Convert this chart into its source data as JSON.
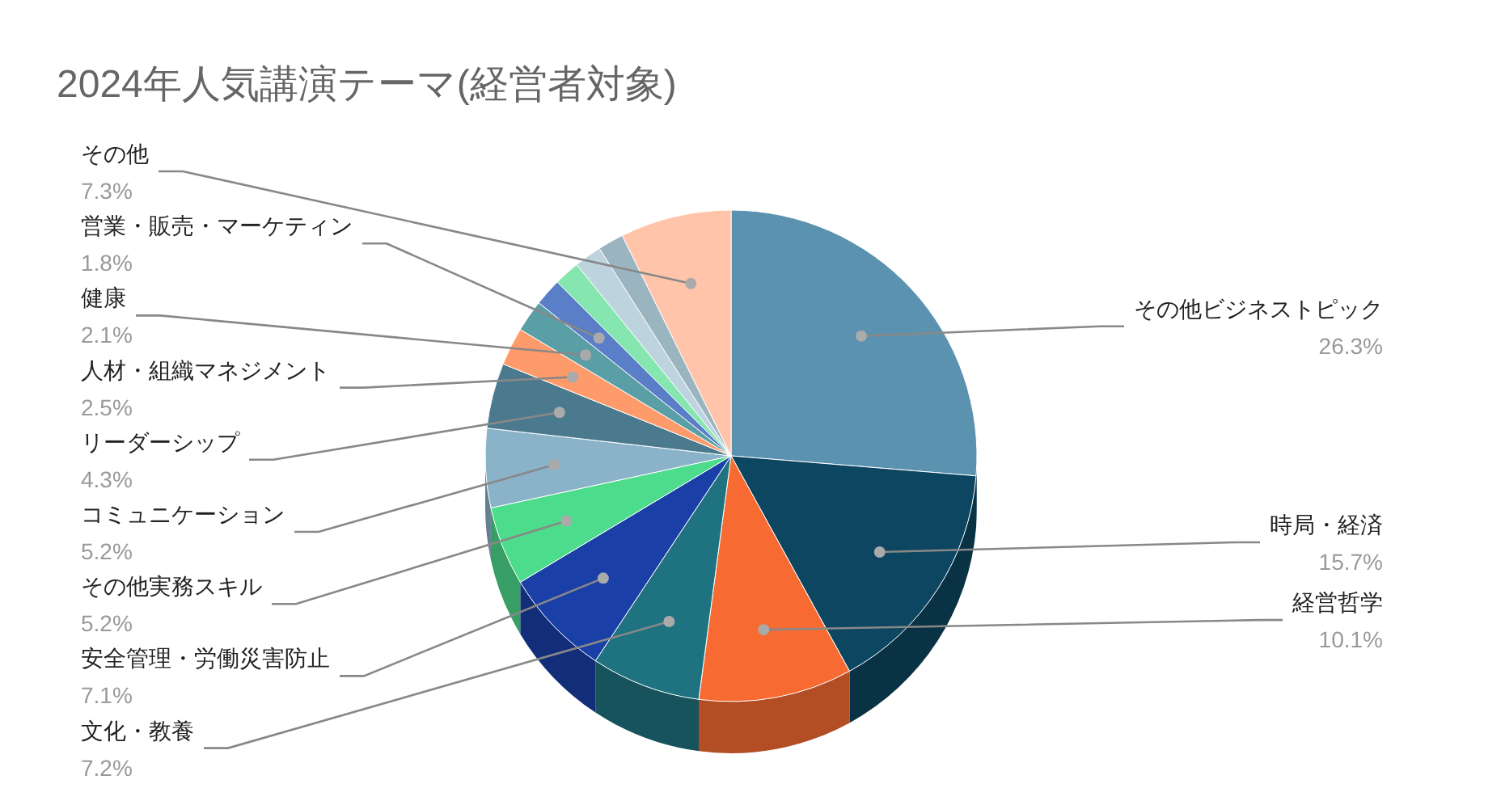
{
  "chart_data": {
    "type": "pie",
    "title": "2024年人気講演テーマ(経営者対象)",
    "categories": [
      "その他ビジネストピック",
      "時局・経済",
      "経営哲学",
      "文化・教養",
      "安全管理・労働災害防止",
      "その他実務スキル",
      "コミュニケーション",
      "リーダーシップ",
      "人材・組織マネジメント",
      "健康",
      "営業・販売・マーケティン",
      null,
      null,
      null,
      "その他"
    ],
    "values": [
      26.3,
      15.7,
      10.1,
      7.2,
      7.1,
      5.2,
      5.2,
      4.3,
      2.5,
      2.1,
      1.8,
      1.7,
      1.8,
      1.7,
      7.3
    ],
    "value_labels": [
      "26.3%",
      "15.7%",
      "10.1%",
      "7.2%",
      "7.1%",
      "5.2%",
      "5.2%",
      "4.3%",
      "2.5%",
      "2.1%",
      "1.8%",
      null,
      null,
      null,
      "7.3%"
    ],
    "colors": [
      "#5b92b0",
      "#0d4660",
      "#f76b32",
      "#1f7380",
      "#1a40a8",
      "#4ddc8c",
      "#8ab2c8",
      "#4b7a8e",
      "#ff9a6a",
      "#5a9ea6",
      "#5a7ec8",
      "#86e6b0",
      "#bdd3de",
      "#9ab5c0",
      "#ffc4aa"
    ],
    "legend": false
  }
}
